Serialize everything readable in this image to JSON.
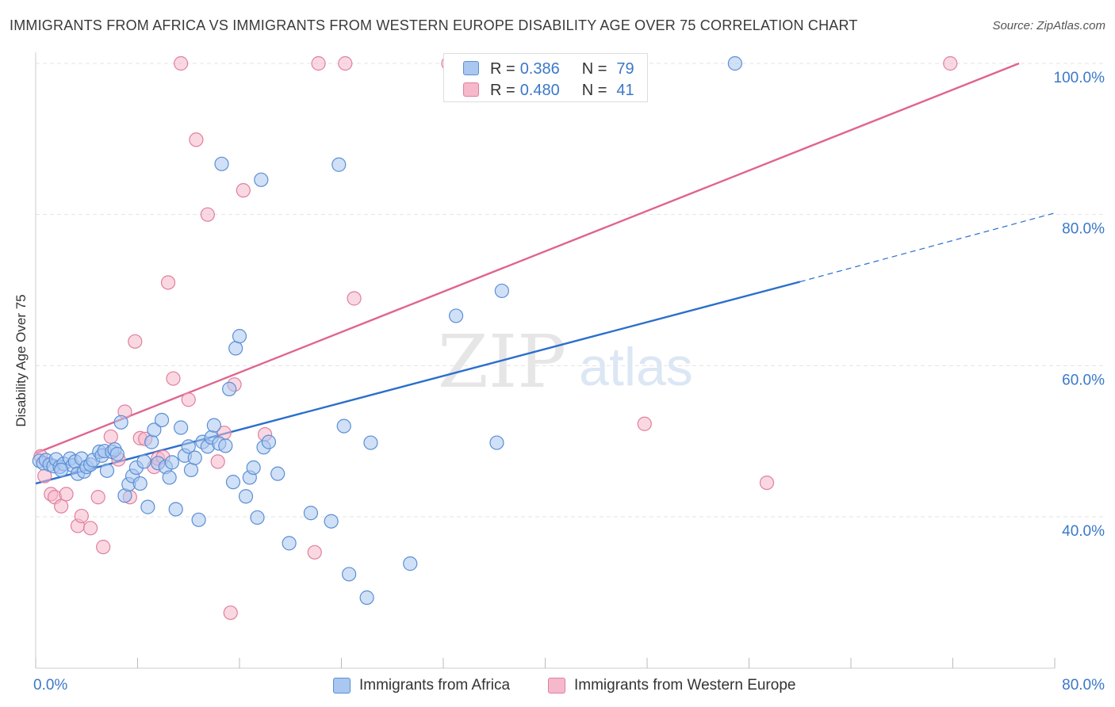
{
  "header": {
    "title": "IMMIGRANTS FROM AFRICA VS IMMIGRANTS FROM WESTERN EUROPE DISABILITY AGE OVER 75 CORRELATION CHART",
    "source": "Source: ZipAtlas.com"
  },
  "watermark": {
    "zip": "ZIP",
    "atlas": "atlas"
  },
  "legend": {
    "africa": {
      "r_label": "R =",
      "r_value": "0.386",
      "n_label": "N =",
      "n_value": "79"
    },
    "western_europe": {
      "r_label": "R =",
      "r_value": "0.480",
      "n_label": "N =",
      "n_value": "41"
    }
  },
  "colors": {
    "africa_fill": "#a9c7f0",
    "africa_stroke": "#5b8fd4",
    "africa_line": "#2b6fcc",
    "we_fill": "#f6b8cb",
    "we_stroke": "#e07fa0",
    "we_line": "#e0648f",
    "axis_text": "#3b78c8",
    "grid": "#e3e3e3"
  },
  "chart_data": {
    "type": "scatter",
    "title": "IMMIGRANTS FROM AFRICA VS IMMIGRANTS FROM WESTERN EUROPE DISABILITY AGE OVER 75 CORRELATION CHART",
    "xlabel": "",
    "ylabel": "Disability Age Over 75",
    "xlim": [
      0,
      80
    ],
    "ylim": [
      20,
      102
    ],
    "x_tick_labels": [
      "0.0%",
      "80.0%"
    ],
    "y_ticks": [
      40,
      60,
      80,
      100
    ],
    "y_tick_labels": [
      "40.0%",
      "60.0%",
      "80.0%",
      "100.0%"
    ],
    "grid": true,
    "legend_position": "top-center",
    "series": [
      {
        "name": "Immigrants from Africa",
        "r": 0.386,
        "n": 79,
        "trend": {
          "x_start": 0.0,
          "y_start": 44.4,
          "x_solid_end": 60.0,
          "y_solid_end": 71.1,
          "x_end": 80.0,
          "y_end": 80.2
        },
        "points": [
          [
            0.3,
            47.4
          ],
          [
            0.6,
            47.1
          ],
          [
            0.8,
            47.5
          ],
          [
            1.1,
            46.9
          ],
          [
            1.4,
            46.7
          ],
          [
            1.6,
            47.6
          ],
          [
            1.9,
            46.6
          ],
          [
            2.2,
            47.0
          ],
          [
            2.7,
            47.7
          ],
          [
            2.9,
            46.8
          ],
          [
            3.1,
            47.3
          ],
          [
            3.3,
            45.7
          ],
          [
            3.6,
            47.7
          ],
          [
            3.8,
            46.0
          ],
          [
            4.0,
            46.6
          ],
          [
            4.3,
            46.9
          ],
          [
            4.5,
            47.5
          ],
          [
            5.0,
            48.6
          ],
          [
            5.2,
            48.1
          ],
          [
            5.4,
            48.7
          ],
          [
            5.6,
            46.1
          ],
          [
            6.0,
            48.6
          ],
          [
            6.2,
            48.9
          ],
          [
            6.4,
            48.3
          ],
          [
            6.7,
            52.5
          ],
          [
            7.0,
            42.8
          ],
          [
            7.3,
            44.3
          ],
          [
            7.6,
            45.4
          ],
          [
            7.9,
            46.5
          ],
          [
            8.2,
            44.4
          ],
          [
            8.5,
            47.3
          ],
          [
            8.8,
            41.3
          ],
          [
            9.1,
            49.9
          ],
          [
            9.3,
            51.5
          ],
          [
            9.6,
            47.1
          ],
          [
            9.9,
            52.8
          ],
          [
            10.2,
            46.6
          ],
          [
            10.5,
            45.2
          ],
          [
            10.7,
            47.2
          ],
          [
            11.0,
            41.0
          ],
          [
            11.4,
            51.8
          ],
          [
            11.7,
            48.1
          ],
          [
            12.0,
            49.3
          ],
          [
            12.2,
            46.2
          ],
          [
            12.5,
            47.8
          ],
          [
            12.8,
            39.6
          ],
          [
            13.1,
            49.9
          ],
          [
            13.5,
            49.3
          ],
          [
            13.8,
            50.5
          ],
          [
            14.0,
            52.1
          ],
          [
            14.4,
            49.7
          ],
          [
            14.6,
            86.7
          ],
          [
            14.9,
            49.4
          ],
          [
            15.2,
            56.9
          ],
          [
            15.5,
            44.6
          ],
          [
            15.7,
            62.3
          ],
          [
            16.0,
            63.9
          ],
          [
            16.5,
            42.7
          ],
          [
            16.8,
            45.2
          ],
          [
            17.1,
            46.5
          ],
          [
            17.4,
            39.9
          ],
          [
            17.7,
            84.6
          ],
          [
            17.9,
            49.2
          ],
          [
            18.3,
            49.9
          ],
          [
            19.0,
            45.7
          ],
          [
            19.9,
            36.5
          ],
          [
            21.6,
            40.5
          ],
          [
            23.2,
            39.4
          ],
          [
            23.8,
            86.6
          ],
          [
            24.2,
            52.0
          ],
          [
            24.6,
            32.4
          ],
          [
            26.3,
            49.8
          ],
          [
            26.0,
            29.3
          ],
          [
            29.4,
            33.8
          ],
          [
            33.0,
            66.6
          ],
          [
            36.2,
            49.8
          ],
          [
            36.6,
            69.9
          ],
          [
            54.9,
            100.0
          ],
          [
            2.0,
            46.2
          ]
        ]
      },
      {
        "name": "Immigrants from Western Europe",
        "r": 0.48,
        "n": 41,
        "trend": {
          "x_start": 0.0,
          "y_start": 48.4,
          "x_end": 77.2,
          "y_end": 100.0
        },
        "points": [
          [
            0.4,
            48.0
          ],
          [
            0.7,
            45.4
          ],
          [
            1.2,
            43.0
          ],
          [
            1.5,
            42.6
          ],
          [
            2.0,
            41.4
          ],
          [
            2.4,
            43.0
          ],
          [
            3.3,
            38.8
          ],
          [
            3.6,
            40.1
          ],
          [
            4.3,
            38.5
          ],
          [
            4.9,
            42.6
          ],
          [
            5.3,
            36.0
          ],
          [
            5.9,
            50.6
          ],
          [
            6.5,
            47.6
          ],
          [
            7.0,
            53.9
          ],
          [
            7.4,
            42.6
          ],
          [
            7.8,
            63.2
          ],
          [
            8.2,
            50.4
          ],
          [
            8.6,
            50.3
          ],
          [
            9.3,
            46.6
          ],
          [
            9.6,
            47.7
          ],
          [
            10.0,
            47.9
          ],
          [
            10.4,
            71.0
          ],
          [
            10.8,
            58.3
          ],
          [
            11.4,
            100.0
          ],
          [
            12.0,
            55.5
          ],
          [
            12.6,
            89.9
          ],
          [
            13.5,
            80.0
          ],
          [
            14.3,
            47.3
          ],
          [
            14.8,
            51.1
          ],
          [
            15.3,
            27.3
          ],
          [
            15.6,
            57.5
          ],
          [
            16.3,
            83.2
          ],
          [
            18.0,
            50.9
          ],
          [
            21.9,
            35.3
          ],
          [
            22.2,
            100.0
          ],
          [
            24.3,
            100.0
          ],
          [
            25.0,
            68.9
          ],
          [
            32.4,
            100.0
          ],
          [
            47.8,
            52.3
          ],
          [
            57.4,
            44.5
          ],
          [
            71.8,
            100.0
          ]
        ]
      }
    ]
  },
  "bottom_legend": {
    "africa_label": "Immigrants from Africa",
    "we_label": "Immigrants from Western Europe"
  }
}
